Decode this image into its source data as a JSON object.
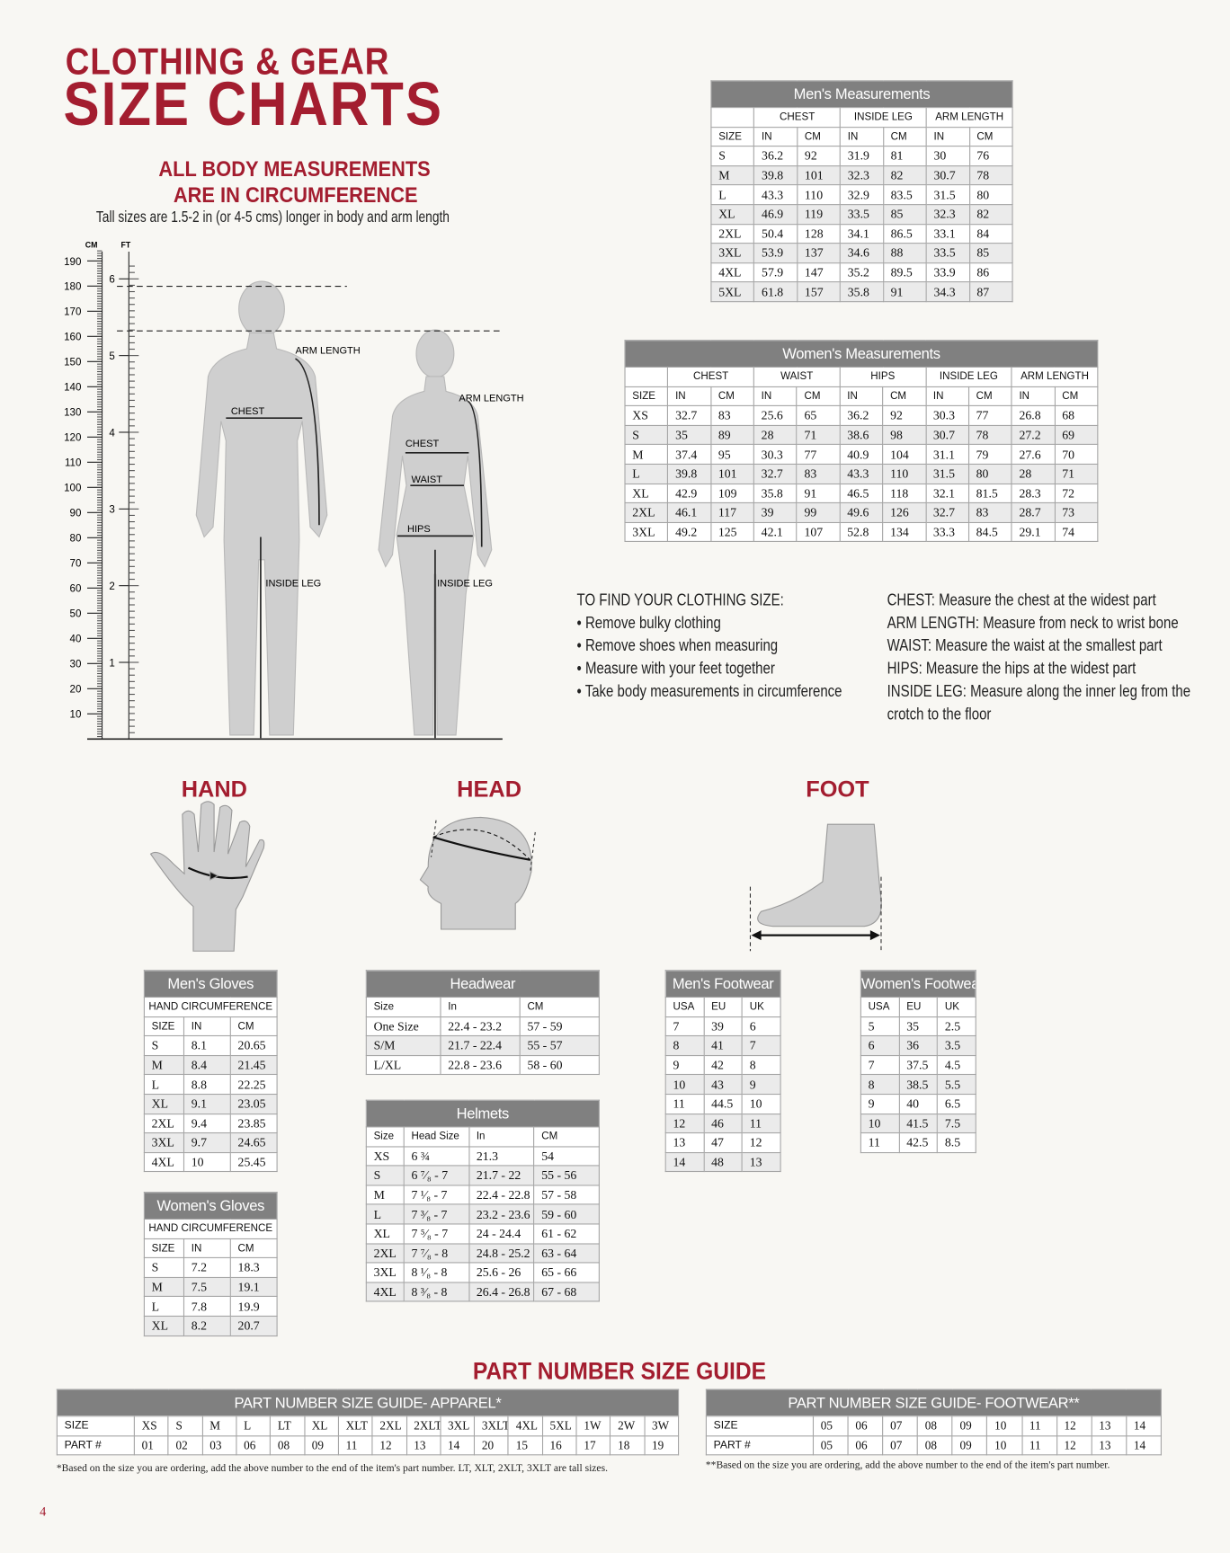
{
  "header": {
    "title_line1": "CLOTHING & GEAR",
    "title_line2": "SIZE CHARTS",
    "subtitle_line1": "ALL BODY MEASUREMENTS",
    "subtitle_line2": "ARE IN CIRCUMFERENCE",
    "note": "Tall sizes are 1.5-2 in (or 4-5 cms) longer in body and arm  length"
  },
  "body_figure": {
    "cm_label": "CM",
    "ft_label": "FT",
    "cm_ticks": [
      10,
      20,
      30,
      40,
      50,
      60,
      70,
      80,
      90,
      100,
      110,
      120,
      130,
      140,
      150,
      160,
      170,
      180,
      190
    ],
    "ft_ticks": [
      1,
      2,
      3,
      4,
      5,
      6
    ],
    "male_labels": {
      "arm_length": "ARM LENGTH",
      "chest": "CHEST",
      "inside_leg": "INSIDE LEG"
    },
    "female_labels": {
      "arm_length": "ARM LENGTH",
      "chest": "CHEST",
      "waist": "WAIST",
      "hips": "HIPS",
      "inside_leg": "INSIDE LEG"
    }
  },
  "mens_measurements": {
    "title": "Men's Measurements",
    "groups": [
      "CHEST",
      "INSIDE LEG",
      "ARM LENGTH"
    ],
    "columns": [
      "SIZE",
      "IN",
      "CM",
      "IN",
      "CM",
      "IN",
      "CM"
    ],
    "rows": [
      [
        "S",
        "36.2",
        "92",
        "31.9",
        "81",
        "30",
        "76"
      ],
      [
        "M",
        "39.8",
        "101",
        "32.3",
        "82",
        "30.7",
        "78"
      ],
      [
        "L",
        "43.3",
        "110",
        "32.9",
        "83.5",
        "31.5",
        "80"
      ],
      [
        "XL",
        "46.9",
        "119",
        "33.5",
        "85",
        "32.3",
        "82"
      ],
      [
        "2XL",
        "50.4",
        "128",
        "34.1",
        "86.5",
        "33.1",
        "84"
      ],
      [
        "3XL",
        "53.9",
        "137",
        "34.6",
        "88",
        "33.5",
        "85"
      ],
      [
        "4XL",
        "57.9",
        "147",
        "35.2",
        "89.5",
        "33.9",
        "86"
      ],
      [
        "5XL",
        "61.8",
        "157",
        "35.8",
        "91",
        "34.3",
        "87"
      ]
    ]
  },
  "womens_measurements": {
    "title": "Women's Measurements",
    "groups": [
      "CHEST",
      "WAIST",
      "HIPS",
      "INSIDE LEG",
      "ARM LENGTH"
    ],
    "columns": [
      "SIZE",
      "IN",
      "CM",
      "IN",
      "CM",
      "IN",
      "CM",
      "IN",
      "CM",
      "IN",
      "CM"
    ],
    "rows": [
      [
        "XS",
        "32.7",
        "83",
        "25.6",
        "65",
        "36.2",
        "92",
        "30.3",
        "77",
        "26.8",
        "68"
      ],
      [
        "S",
        "35",
        "89",
        "28",
        "71",
        "38.6",
        "98",
        "30.7",
        "78",
        "27.2",
        "69"
      ],
      [
        "M",
        "37.4",
        "95",
        "30.3",
        "77",
        "40.9",
        "104",
        "31.1",
        "79",
        "27.6",
        "70"
      ],
      [
        "L",
        "39.8",
        "101",
        "32.7",
        "83",
        "43.3",
        "110",
        "31.5",
        "80",
        "28",
        "71"
      ],
      [
        "XL",
        "42.9",
        "109",
        "35.8",
        "91",
        "46.5",
        "118",
        "32.1",
        "81.5",
        "28.3",
        "72"
      ],
      [
        "2XL",
        "46.1",
        "117",
        "39",
        "99",
        "49.6",
        "126",
        "32.7",
        "83",
        "28.7",
        "73"
      ],
      [
        "3XL",
        "49.2",
        "125",
        "42.1",
        "107",
        "52.8",
        "134",
        "33.3",
        "84.5",
        "29.1",
        "74"
      ]
    ]
  },
  "instructions": {
    "heading": "TO FIND YOUR CLOTHING SIZE:",
    "steps": [
      "• Remove bulky clothing",
      "• Remove shoes when measuring",
      "• Measure with your feet together",
      "• Take body measurements in circumference"
    ],
    "definitions": [
      "CHEST: Measure the chest at the widest part",
      "ARM LENGTH: Measure from neck to wrist bone",
      "WAIST: Measure the waist at the smallest part",
      "HIPS: Measure the hips at the widest part",
      "INSIDE LEG: Measure along the inner leg from the",
      "crotch to the floor"
    ]
  },
  "section_titles": {
    "hand": "HAND",
    "head": "HEAD",
    "foot": "FOOT"
  },
  "mens_gloves": {
    "title": "Men's Gloves",
    "banner": "HAND CIRCUMFERENCE",
    "columns": [
      "SIZE",
      "IN",
      "CM"
    ],
    "rows": [
      [
        "S",
        "8.1",
        "20.65"
      ],
      [
        "M",
        "8.4",
        "21.45"
      ],
      [
        "L",
        "8.8",
        "22.25"
      ],
      [
        "XL",
        "9.1",
        "23.05"
      ],
      [
        "2XL",
        "9.4",
        "23.85"
      ],
      [
        "3XL",
        "9.7",
        "24.65"
      ],
      [
        "4XL",
        "10",
        "25.45"
      ]
    ]
  },
  "womens_gloves": {
    "title": "Women's Gloves",
    "banner": "HAND CIRCUMFERENCE",
    "columns": [
      "SIZE",
      "IN",
      "CM"
    ],
    "rows": [
      [
        "S",
        "7.2",
        "18.3"
      ],
      [
        "M",
        "7.5",
        "19.1"
      ],
      [
        "L",
        "7.8",
        "19.9"
      ],
      [
        "XL",
        "8.2",
        "20.7"
      ]
    ]
  },
  "headwear": {
    "title": "Headwear",
    "columns": [
      "Size",
      "In",
      "CM"
    ],
    "rows": [
      [
        "One Size",
        "22.4 - 23.2",
        "57 - 59"
      ],
      [
        "S/M",
        "21.7 - 22.4",
        "55 - 57"
      ],
      [
        "L/XL",
        "22.8 - 23.6",
        "58 - 60"
      ]
    ]
  },
  "helmets": {
    "title": "Helmets",
    "columns": [
      "Size",
      "Head Size",
      "In",
      "CM"
    ],
    "rows": [
      [
        "XS",
        "6 ¾",
        "21.3",
        "54"
      ],
      [
        "S",
        "6 ⁷⁄₈ - 7",
        "21.7 - 22",
        "55 - 56"
      ],
      [
        "M",
        "7 ¹⁄₈ - 7",
        "22.4 - 22.8",
        "57 - 58"
      ],
      [
        "L",
        "7 ³⁄₈ - 7",
        "23.2 - 23.6",
        "59 - 60"
      ],
      [
        "XL",
        "7 ⁵⁄₈ - 7",
        "24 - 24.4",
        "61 - 62"
      ],
      [
        "2XL",
        "7 ⁷⁄₈ - 8",
        "24.8 - 25.2",
        "63 - 64"
      ],
      [
        "3XL",
        "8 ¹⁄₈ - 8",
        "25.6 - 26",
        "65 - 66"
      ],
      [
        "4XL",
        "8 ³⁄₈ - 8",
        "26.4 - 26.8",
        "67 - 68"
      ]
    ]
  },
  "mens_footwear": {
    "title": "Men's Footwear",
    "columns": [
      "USA",
      "EU",
      "UK"
    ],
    "rows": [
      [
        "7",
        "39",
        "6"
      ],
      [
        "8",
        "41",
        "7"
      ],
      [
        "9",
        "42",
        "8"
      ],
      [
        "10",
        "43",
        "9"
      ],
      [
        "11",
        "44.5",
        "10"
      ],
      [
        "12",
        "46",
        "11"
      ],
      [
        "13",
        "47",
        "12"
      ],
      [
        "14",
        "48",
        "13"
      ]
    ]
  },
  "womens_footwear": {
    "title": "Women's Footwear",
    "columns": [
      "USA",
      "EU",
      "UK"
    ],
    "rows": [
      [
        "5",
        "35",
        "2.5"
      ],
      [
        "6",
        "36",
        "3.5"
      ],
      [
        "7",
        "37.5",
        "4.5"
      ],
      [
        "8",
        "38.5",
        "5.5"
      ],
      [
        "9",
        "40",
        "6.5"
      ],
      [
        "10",
        "41.5",
        "7.5"
      ],
      [
        "11",
        "42.5",
        "8.5"
      ]
    ]
  },
  "part_number_guide": {
    "title": "PART NUMBER SIZE GUIDE",
    "apparel": {
      "title": "PART NUMBER SIZE GUIDE- APPAREL*",
      "rows": [
        [
          "SIZE",
          "XS",
          "S",
          "M",
          "L",
          "LT",
          "XL",
          "XLT",
          "2XL",
          "2XLT",
          "3XL",
          "3XLT",
          "4XL",
          "5XL",
          "1W",
          "2W",
          "3W"
        ],
        [
          "PART #",
          "01",
          "02",
          "03",
          "06",
          "08",
          "09",
          "11",
          "12",
          "13",
          "14",
          "20",
          "15",
          "16",
          "17",
          "18",
          "19"
        ]
      ],
      "footnote": "*Based on the size you are ordering, add the above number to the end of the item's part number. LT, XLT, 2XLT, 3XLT are tall sizes."
    },
    "footwear": {
      "title": "PART NUMBER SIZE GUIDE- FOOTWEAR**",
      "rows": [
        [
          "SIZE",
          "05",
          "06",
          "07",
          "08",
          "09",
          "10",
          "11",
          "12",
          "13",
          "14"
        ],
        [
          "PART #",
          "05",
          "06",
          "07",
          "08",
          "09",
          "10",
          "11",
          "12",
          "13",
          "14"
        ]
      ],
      "footnote": "**Based on the size you are ordering, add the above number to the end of the item's part number."
    }
  },
  "page_number": "4"
}
